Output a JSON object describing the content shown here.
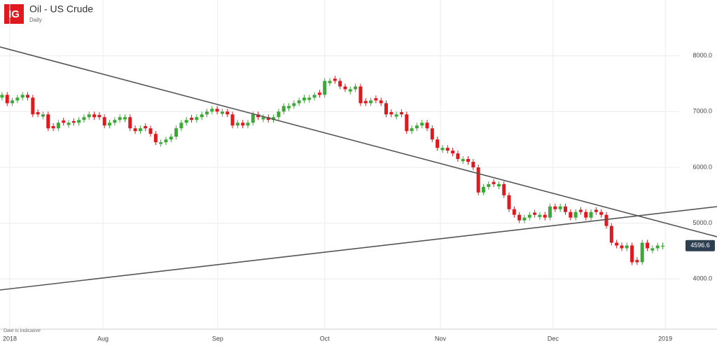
{
  "logo": "IG",
  "chart_data": {
    "type": "candlestick",
    "title": "Oil - US Crude",
    "subtitle": "Daily",
    "note": "Date is indicative",
    "up_color": "#3aa935",
    "down_color": "#e0191e",
    "grid": true,
    "last_value": {
      "value": 4596.6,
      "label": "4596.6"
    },
    "xlim": [
      -0.4,
      139.6
    ],
    "xticks": [
      {
        "value": 1.5,
        "label": "2018"
      },
      {
        "value": 19.7,
        "label": "Aug"
      },
      {
        "value": 42.1,
        "label": "Sep"
      },
      {
        "value": 63,
        "label": "Oct"
      },
      {
        "value": 85.6,
        "label": "Nov"
      },
      {
        "value": 107.6,
        "label": "Dec"
      },
      {
        "value": 129.5,
        "label": "2019"
      }
    ],
    "ylim": [
      3100,
      9000
    ],
    "yticks": [
      {
        "value": 4000,
        "label": "4000.0"
      },
      {
        "value": 5000,
        "label": "5000.0"
      },
      {
        "value": 6000,
        "label": "6000.0"
      },
      {
        "value": 7000,
        "label": "7000.0"
      },
      {
        "value": 8000,
        "label": "8000.0"
      }
    ],
    "trendlines": [
      {
        "x": [
          -0.4,
          139.6
        ],
        "y": [
          8159,
          4757
        ]
      },
      {
        "x": [
          -0.4,
          139.6
        ],
        "y": [
          3803,
          5297
        ]
      }
    ],
    "open": [
      7250,
      7300,
      7150,
      7200,
      7250,
      7300,
      7250,
      6990,
      6910,
      6950,
      6740,
      6700,
      6840,
      6760,
      6830,
      6800,
      6850,
      6900,
      6950,
      6940,
      6900,
      6750,
      6800,
      6850,
      6860,
      6900,
      6700,
      6650,
      6740,
      6700,
      6600,
      6420,
      6450,
      6500,
      6550,
      6700,
      6800,
      6890,
      6850,
      6900,
      6950,
      7000,
      7050,
      6960,
      7000,
      6950,
      6750,
      6800,
      6750,
      6800,
      6950,
      6860,
      6900,
      6850,
      6900,
      7000,
      7060,
      7100,
      7150,
      7200,
      7210,
      7250,
      7340,
      7300,
      7510,
      7590,
      7550,
      7450,
      7360,
      7400,
      7450,
      7190,
      7150,
      7240,
      7200,
      7150,
      6990,
      6910,
      6990,
      6950,
      6650,
      6700,
      6750,
      6800,
      6700,
      6500,
      6310,
      6350,
      6300,
      6250,
      6110,
      6150,
      6100,
      6000,
      5550,
      5650,
      5740,
      5660,
      5700,
      5500,
      5250,
      5150,
      5050,
      5100,
      5190,
      5110,
      5150,
      5100,
      5300,
      5250,
      5300,
      5200,
      5100,
      5240,
      5200,
      5100,
      5240,
      5200,
      5150,
      4950,
      4650,
      4600,
      4550,
      4600,
      4340,
      4300,
      4650,
      4510,
      4550,
      4580
    ],
    "high": [
      7350,
      7350,
      7250,
      7300,
      7350,
      7350,
      7300,
      7040,
      7000,
      7000,
      6790,
      6850,
      6890,
      6850,
      6880,
      6900,
      6950,
      7000,
      7000,
      6990,
      6950,
      6850,
      6900,
      6950,
      6950,
      6950,
      6750,
      6750,
      6790,
      6750,
      6650,
      6500,
      6550,
      6600,
      6750,
      6850,
      6900,
      6940,
      6950,
      7000,
      7050,
      7100,
      7100,
      7050,
      7050,
      7000,
      6850,
      6850,
      6850,
      7000,
      7000,
      6950,
      6950,
      6950,
      7050,
      7150,
      7150,
      7200,
      7250,
      7300,
      7300,
      7350,
      7390,
      7600,
      7600,
      7640,
      7600,
      7500,
      7450,
      7500,
      7500,
      7240,
      7250,
      7290,
      7250,
      7200,
      7040,
      7000,
      7040,
      7000,
      6750,
      6800,
      6850,
      6850,
      6750,
      6550,
      6400,
      6400,
      6350,
      6300,
      6200,
      6200,
      6150,
      6050,
      5700,
      5750,
      5790,
      5750,
      5750,
      5550,
      5300,
      5200,
      5150,
      5200,
      5240,
      5200,
      5200,
      5350,
      5350,
      5350,
      5350,
      5250,
      5250,
      5290,
      5250,
      5250,
      5290,
      5250,
      5200,
      5000,
      4700,
      4650,
      4650,
      4650,
      4390,
      4700,
      4700,
      4600,
      4650,
      4650
    ],
    "low": [
      7200,
      7100,
      7100,
      7150,
      7200,
      7200,
      6900,
      6900,
      6860,
      6650,
      6650,
      6650,
      6750,
      6710,
      6750,
      6750,
      6800,
      6850,
      6850,
      6850,
      6700,
      6700,
      6750,
      6800,
      6810,
      6650,
      6600,
      6600,
      6650,
      6550,
      6400,
      6370,
      6400,
      6450,
      6500,
      6650,
      6750,
      6800,
      6800,
      6850,
      6900,
      6950,
      6950,
      6910,
      6900,
      6700,
      6700,
      6700,
      6700,
      6750,
      6850,
      6810,
      6800,
      6800,
      6850,
      6950,
      7010,
      7050,
      7100,
      7150,
      7160,
      7200,
      7250,
      7250,
      7460,
      7500,
      7400,
      7350,
      7310,
      7350,
      7100,
      7100,
      7100,
      7150,
      7100,
      6900,
      6900,
      6860,
      6900,
      6600,
      6600,
      6650,
      6700,
      6650,
      6450,
      6300,
      6260,
      6250,
      6200,
      6100,
      6060,
      6050,
      5950,
      5500,
      5500,
      5600,
      5650,
      5610,
      5450,
      5200,
      5100,
      5000,
      5000,
      5050,
      5100,
      5060,
      5050,
      5050,
      5200,
      5200,
      5150,
      5050,
      5050,
      5150,
      5050,
      5050,
      5150,
      5100,
      4900,
      4600,
      4550,
      4500,
      4500,
      4250,
      4250,
      4250,
      4500,
      4460,
      4500,
      4530
    ],
    "close": [
      7300,
      7150,
      7200,
      7250,
      7300,
      7250,
      6950,
      6950,
      6950,
      6700,
      6700,
      6800,
      6800,
      6800,
      6800,
      6850,
      6900,
      6950,
      6900,
      6900,
      6750,
      6800,
      6850,
      6900,
      6900,
      6700,
      6650,
      6700,
      6700,
      6600,
      6450,
      6450,
      6500,
      6550,
      6700,
      6800,
      6850,
      6850,
      6900,
      6950,
      7000,
      7050,
      7000,
      7000,
      6950,
      6750,
      6800,
      6750,
      6800,
      6950,
      6900,
      6900,
      6850,
      6900,
      7000,
      7100,
      7100,
      7150,
      7200,
      7250,
      7250,
      7300,
      7300,
      7550,
      7550,
      7550,
      7450,
      7400,
      7400,
      7450,
      7150,
      7150,
      7200,
      7200,
      7150,
      6950,
      6950,
      6950,
      6950,
      6650,
      6700,
      6750,
      6800,
      6700,
      6500,
      6350,
      6350,
      6300,
      6250,
      6150,
      6150,
      6100,
      6000,
      5550,
      5650,
      5700,
      5700,
      5700,
      5500,
      5250,
      5150,
      5050,
      5100,
      5150,
      5150,
      5150,
      5100,
      5300,
      5250,
      5300,
      5200,
      5100,
      5200,
      5200,
      5100,
      5200,
      5200,
      5150,
      4950,
      4650,
      4600,
      4550,
      4600,
      4300,
      4300,
      4650,
      4550,
      4550,
      4600,
      4596.6
    ]
  }
}
